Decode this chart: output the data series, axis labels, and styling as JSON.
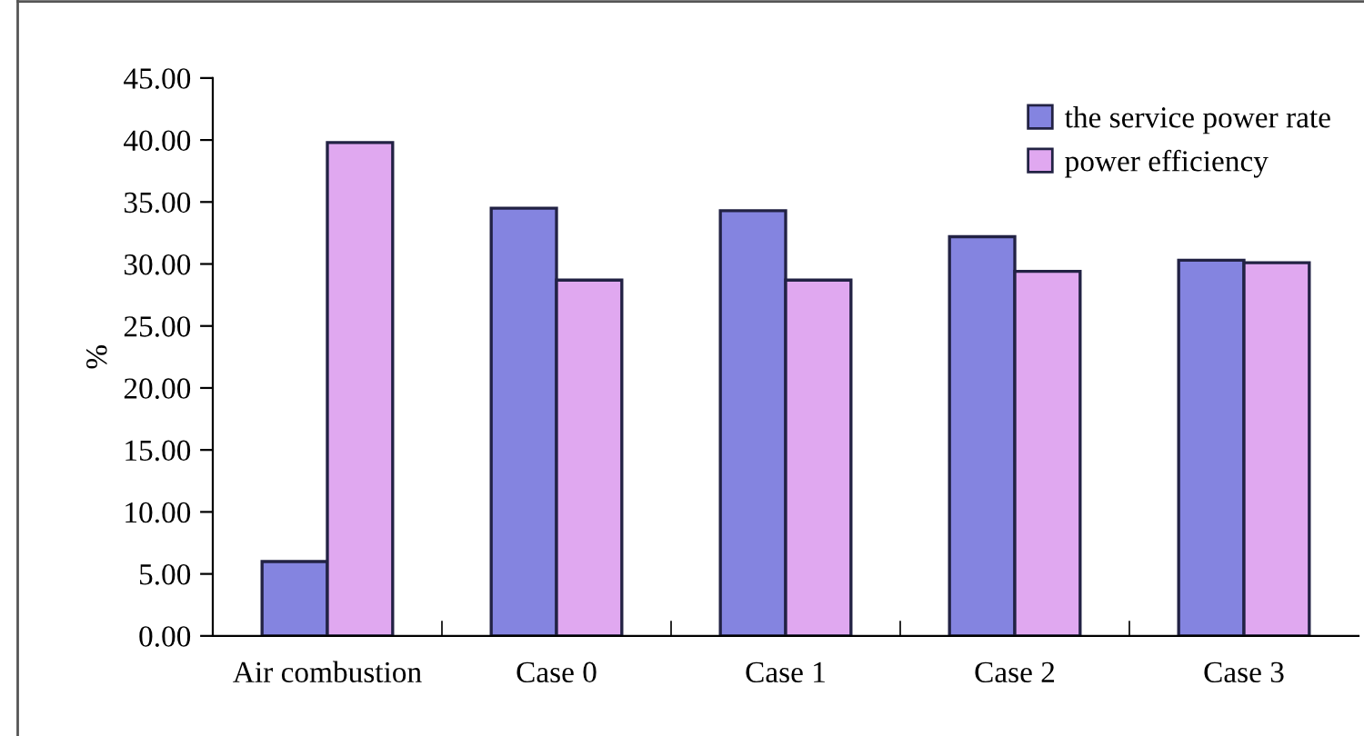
{
  "chart_data": {
    "type": "bar",
    "ylabel": "%",
    "categories": [
      "Air combustion",
      "Case 0",
      "Case 1",
      "Case 2",
      "Case 3"
    ],
    "series": [
      {
        "name": "the service power rate",
        "color": "#8484e0",
        "values": [
          6.0,
          34.5,
          34.3,
          32.2,
          30.3
        ]
      },
      {
        "name": "power efficiency",
        "color": "#e0a8f0",
        "values": [
          39.8,
          28.7,
          28.7,
          29.4,
          30.1
        ]
      }
    ],
    "ylim": [
      0,
      45
    ],
    "yticks": [
      {
        "value": 0,
        "label": "0.00"
      },
      {
        "value": 5,
        "label": "5.00"
      },
      {
        "value": 10,
        "label": "10.00"
      },
      {
        "value": 15,
        "label": "15.00"
      },
      {
        "value": 20,
        "label": "20.00"
      },
      {
        "value": 25,
        "label": "25.00"
      },
      {
        "value": 30,
        "label": "30.00"
      },
      {
        "value": 35,
        "label": "35.00"
      },
      {
        "value": 40,
        "label": "40.00"
      },
      {
        "value": 45,
        "label": "45.00"
      }
    ],
    "grid": false,
    "legend": "top right"
  }
}
